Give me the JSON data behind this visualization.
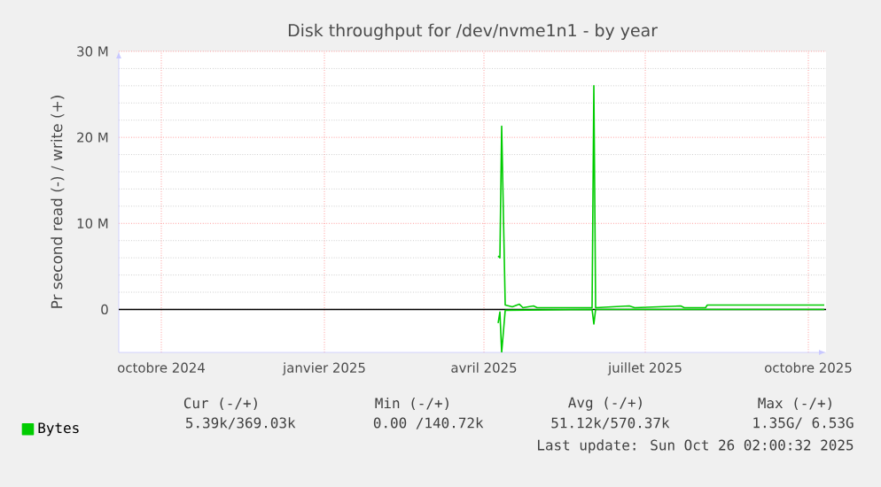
{
  "chart_data": {
    "type": "line",
    "title": "Disk throughput for /dev/nvme1n1 - by year",
    "ylabel": "Pr second read (-) / write (+)",
    "xlim": [
      "2024-09-07",
      "2025-10-11"
    ],
    "ylim": [
      -5,
      30
    ],
    "xticks": [
      {
        "value": "2024-10-01",
        "label": "octobre 2024"
      },
      {
        "value": "2025-01-01",
        "label": "janvier 2025"
      },
      {
        "value": "2025-04-01",
        "label": "avril 2025"
      },
      {
        "value": "2025-07-01",
        "label": "juillet 2025"
      },
      {
        "value": "2025-10-01",
        "label": "octobre 2025"
      }
    ],
    "yticks": [
      {
        "value": 0,
        "label": "0"
      },
      {
        "value": 10,
        "label": "10 M"
      },
      {
        "value": 20,
        "label": "20 M"
      },
      {
        "value": 30,
        "label": "30 M"
      }
    ],
    "grid": true,
    "legend": "bottom left",
    "ref_lines": [
      {
        "axis": "y",
        "value": 0,
        "color": "#000000"
      }
    ],
    "series": [
      {
        "name": "Bytes",
        "color": "#00cc00",
        "x": [
          "2025-04-09",
          "2025-04-10",
          "2025-04-11",
          "2025-04-13",
          "2025-04-17",
          "2025-04-21",
          "2025-04-23",
          "2025-04-29",
          "2025-05-01",
          "2025-06-01",
          "2025-06-02",
          "2025-06-03",
          "2025-06-22",
          "2025-06-25",
          "2025-07-21",
          "2025-07-23",
          "2025-08-04",
          "2025-08-05",
          "2025-10-10"
        ],
        "values": [
          6.2,
          6.0,
          21.3,
          0.5,
          0.3,
          0.6,
          0.2,
          0.4,
          0.2,
          0.2,
          26.0,
          0.2,
          0.4,
          0.2,
          0.4,
          0.2,
          0.2,
          0.5,
          0.5
        ]
      },
      {
        "color": "#00cc00",
        "x": [
          "2025-04-09",
          "2025-04-10",
          "2025-04-11",
          "2025-04-13",
          "2025-06-01",
          "2025-06-02",
          "2025-06-03",
          "2025-10-10"
        ],
        "values": [
          -1.6,
          -0.3,
          -5,
          -0.1,
          0,
          -1.7,
          0,
          0
        ]
      }
    ],
    "annotations": [
      "Cur (-/+)",
      "Min (-/+)",
      "Avg (-/+)",
      "Max (-/+)",
      "5.39k/369.03k",
      "0.00 /140.72k",
      "51.12k/570.37k",
      "1.35G/  6.53G",
      "Last update: Sun Oct 26 02:00:32 2025"
    ]
  }
}
